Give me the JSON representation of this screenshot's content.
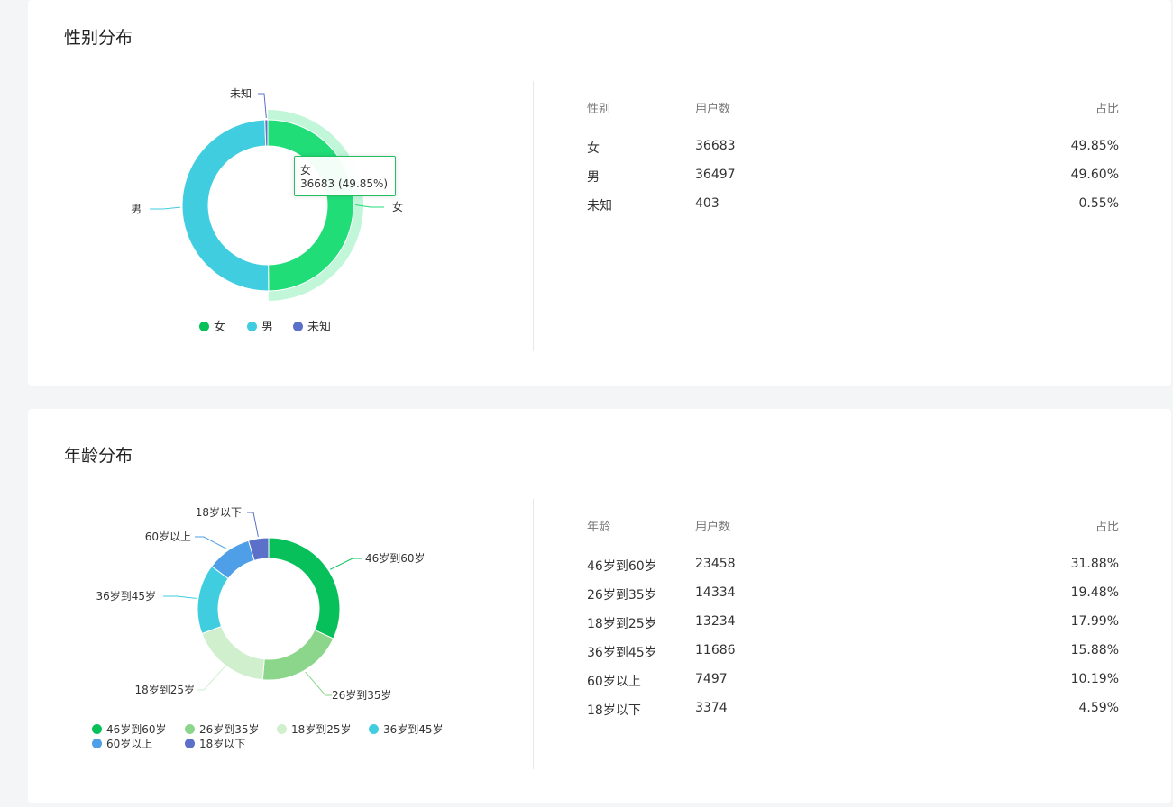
{
  "colors": {
    "green": "#08c05a",
    "cyan": "#40cde0",
    "indigo": "#5b70c8",
    "light_green": "#8bd68a",
    "pale_green": "#cfefcd",
    "blue": "#4f9fe8",
    "emphasis": "#1fdd78"
  },
  "gender": {
    "title": "性别分布",
    "chart_data": {
      "type": "pie",
      "categories": [
        "女",
        "男",
        "未知"
      ],
      "values": [
        36683,
        36497,
        403
      ],
      "percentages": [
        49.85,
        49.6,
        0.55
      ],
      "colors": [
        "#20dd78",
        "#40cde0",
        "#5b70c8"
      ],
      "highlighted": "女",
      "donut": true
    },
    "tooltip": {
      "name": "女",
      "value_text": "36683 (49.85%)"
    },
    "legend": [
      "女",
      "男",
      "未知"
    ],
    "table": {
      "headers": [
        "性别",
        "用户数",
        "占比"
      ],
      "rows": [
        {
          "label": "女",
          "count": "36683",
          "pct": "49.85%"
        },
        {
          "label": "男",
          "count": "36497",
          "pct": "49.60%"
        },
        {
          "label": "未知",
          "count": "403",
          "pct": "0.55%"
        }
      ]
    }
  },
  "age": {
    "title": "年龄分布",
    "chart_data": {
      "type": "pie",
      "categories": [
        "46岁到60岁",
        "26岁到35岁",
        "18岁到25岁",
        "36岁到45岁",
        "60岁以上",
        "18岁以下"
      ],
      "values": [
        23458,
        14334,
        13234,
        11686,
        7497,
        3374
      ],
      "percentages": [
        31.88,
        19.48,
        17.99,
        15.88,
        10.19,
        4.59
      ],
      "colors": [
        "#08c05a",
        "#8bd68a",
        "#cfefcd",
        "#40cde0",
        "#4f9fe8",
        "#5b70c8"
      ],
      "donut": true
    },
    "legend": [
      "46岁到60岁",
      "26岁到35岁",
      "18岁到25岁",
      "36岁到45岁",
      "60岁以上",
      "18岁以下"
    ],
    "table": {
      "headers": [
        "年龄",
        "用户数",
        "占比"
      ],
      "rows": [
        {
          "label": "46岁到60岁",
          "count": "23458",
          "pct": "31.88%"
        },
        {
          "label": "26岁到35岁",
          "count": "14334",
          "pct": "19.48%"
        },
        {
          "label": "18岁到25岁",
          "count": "13234",
          "pct": "17.99%"
        },
        {
          "label": "36岁到45岁",
          "count": "11686",
          "pct": "15.88%"
        },
        {
          "label": "60岁以上",
          "count": "7497",
          "pct": "10.19%"
        },
        {
          "label": "18岁以下",
          "count": "3374",
          "pct": "4.59%"
        }
      ]
    }
  }
}
